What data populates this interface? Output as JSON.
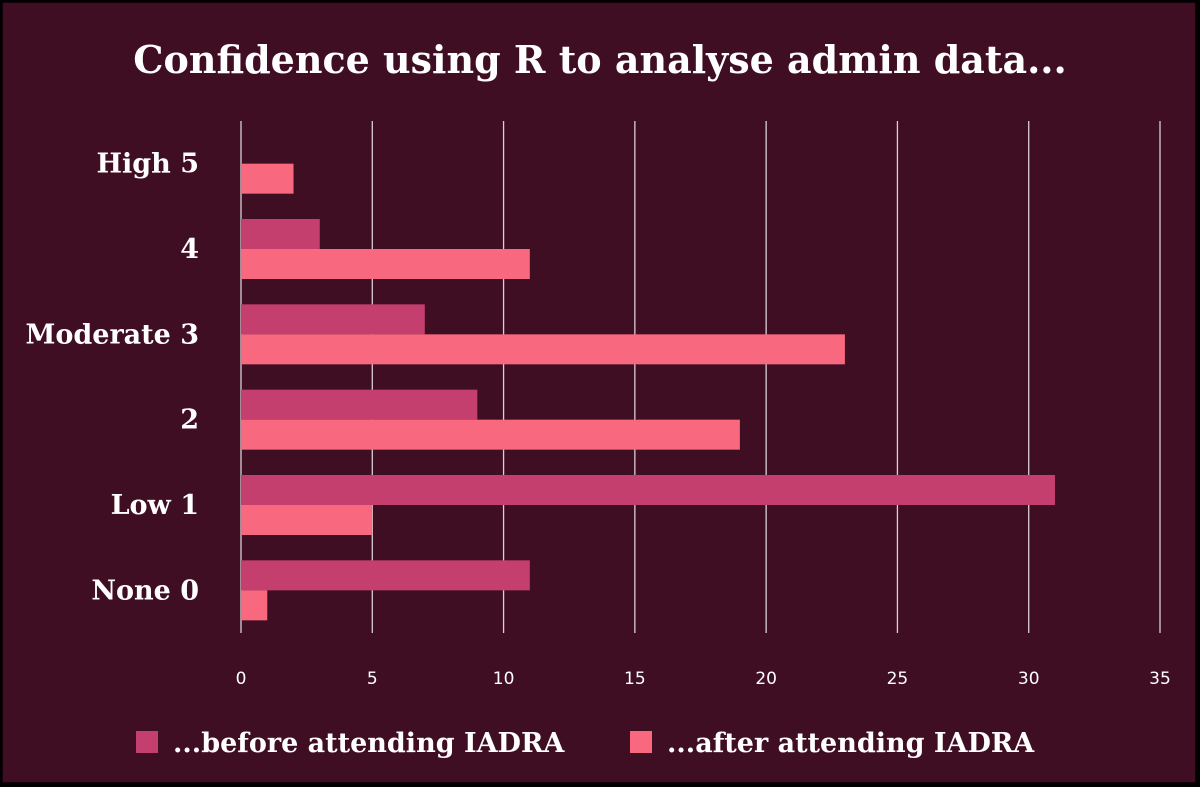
{
  "chart_data": {
    "type": "bar",
    "orientation": "horizontal",
    "title": "Confidence using R to analyse admin data...",
    "categories": [
      "None 0",
      "Low 1",
      "2",
      "Moderate 3",
      "4",
      "High 5"
    ],
    "series": [
      {
        "name": "...before attending IADRA",
        "color": "#c43f6e",
        "values": [
          11,
          31,
          9,
          7,
          3,
          0
        ]
      },
      {
        "name": "...after attending IADRA",
        "color": "#f8687f",
        "values": [
          1,
          5,
          19,
          23,
          11,
          2
        ]
      }
    ],
    "xlim": [
      0,
      35
    ],
    "xticks": [
      0,
      5,
      10,
      15,
      20,
      25,
      30,
      35
    ],
    "grid": "vertical",
    "legend": "bottom",
    "background": "#3f0e22"
  }
}
